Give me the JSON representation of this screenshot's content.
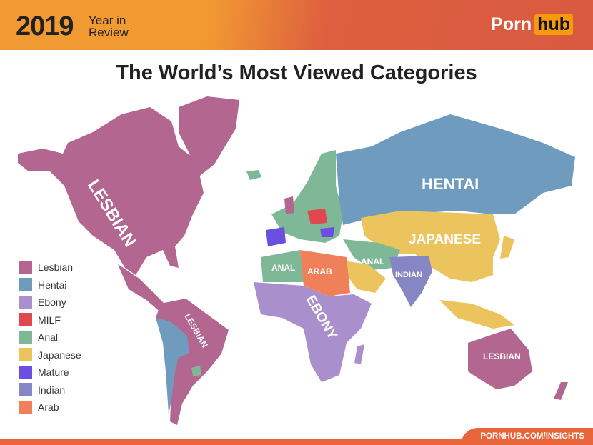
{
  "header": {
    "year": "2019",
    "subtitle_line1": "Year in",
    "subtitle_line2": "Review",
    "logo_part1": "Porn",
    "logo_part2": "hub"
  },
  "title": "The World’s Most Viewed Categories",
  "colors": {
    "Lesbian": "#b3668f",
    "Hentai": "#6f9bbf",
    "Ebony": "#a98fcb",
    "MILF": "#e0474f",
    "Anal": "#7fb896",
    "Japanese": "#ecc45e",
    "Mature": "#6a4fe0",
    "Indian": "#8786c4",
    "Arab": "#f0805a"
  },
  "legend": [
    {
      "label": "Lesbian",
      "color": "#b3668f"
    },
    {
      "label": "Hentai",
      "color": "#6f9bbf"
    },
    {
      "label": "Ebony",
      "color": "#a98fcb"
    },
    {
      "label": "MILF",
      "color": "#e0474f"
    },
    {
      "label": "Anal",
      "color": "#7fb896"
    },
    {
      "label": "Japanese",
      "color": "#ecc45e"
    },
    {
      "label": "Mature",
      "color": "#6a4fe0"
    },
    {
      "label": "Indian",
      "color": "#8786c4"
    },
    {
      "label": "Arab",
      "color": "#f0805a"
    }
  ],
  "map_labels": {
    "north_america": "LESBIAN",
    "russia": "HENTAI",
    "east_asia": "JAPANESE",
    "north_africa": "ANAL",
    "arab": "ARAB",
    "middle_east": "ANAL",
    "india": "INDIAN",
    "africa": "EBONY",
    "south_america": "LESBIAN",
    "australia": "LESBIAN"
  },
  "footer": {
    "url": "PORNHUB.COM/INSIGHTS"
  }
}
